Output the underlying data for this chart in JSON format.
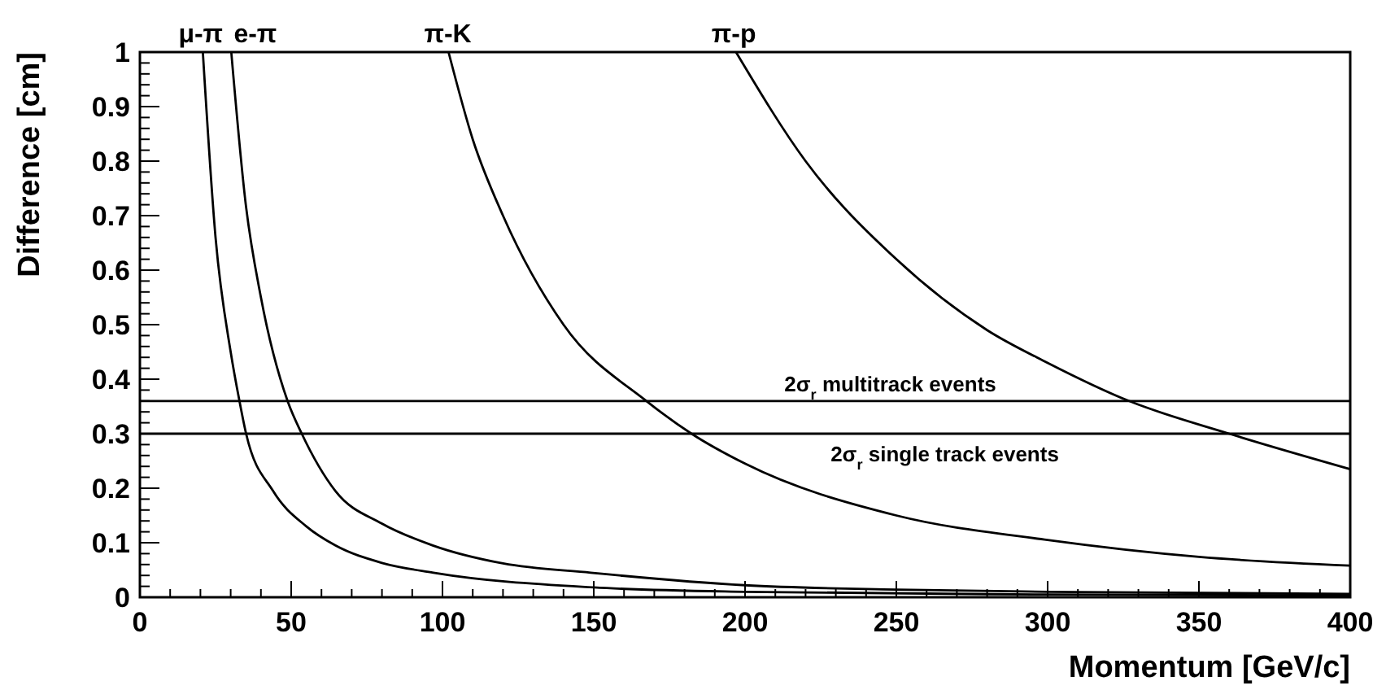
{
  "chart_data": {
    "type": "line",
    "xlabel": "Momentum [GeV/c]",
    "ylabel": "Difference [cm]",
    "xlim": [
      0,
      400
    ],
    "xticks": [
      0,
      50,
      100,
      150,
      200,
      250,
      300,
      350,
      400
    ],
    "ylim": [
      0,
      1
    ],
    "yticks": [
      0,
      0.1,
      0.2,
      0.3,
      0.4,
      0.5,
      0.6,
      0.7,
      0.8,
      0.9,
      1
    ],
    "grid": false,
    "marker": "none",
    "line_style": "solid",
    "series": [
      {
        "name": "μ-π",
        "color": "#000000",
        "x": [
          20.8,
          25,
          30,
          32.9,
          35.1,
          44,
          55,
          64.6,
          80,
          97,
          150,
          200,
          300,
          400
        ],
        "values": [
          1,
          0.66,
          0.45,
          0.36,
          0.3,
          0.195,
          0.13,
          0.095,
          0.063,
          0.045,
          0.018,
          0.01,
          0.005,
          0.003
        ]
      },
      {
        "name": "e-π",
        "color": "#000000",
        "x": [
          30.2,
          35,
          40,
          48.8,
          53.5,
          64.6,
          80,
          96.8,
          120,
          149,
          200,
          250,
          300,
          400
        ],
        "values": [
          1,
          0.72,
          0.55,
          0.36,
          0.3,
          0.195,
          0.135,
          0.095,
          0.062,
          0.045,
          0.022,
          0.014,
          0.01,
          0.006
        ]
      },
      {
        "name": "π-K",
        "color": "#000000",
        "x": [
          102,
          110,
          120,
          140,
          167.4,
          182.3,
          200,
          250,
          300,
          350,
          400
        ],
        "values": [
          1,
          0.84,
          0.7,
          0.5,
          0.36,
          0.3,
          0.245,
          0.15,
          0.105,
          0.074,
          0.058
        ]
      },
      {
        "name": "π-p",
        "color": "#000000",
        "x": [
          197,
          220,
          250,
          280,
          300,
          326.9,
          360,
          400
        ],
        "values": [
          1,
          0.8,
          0.62,
          0.49,
          0.43,
          0.36,
          0.3,
          0.235
        ]
      }
    ],
    "ref_lines": [
      {
        "axis": "y",
        "value": 0.36,
        "label": "2σ$_{r}$ multitrack events",
        "color": "#000000"
      },
      {
        "axis": "y",
        "value": 0.3,
        "label": "2σ$_{r}$ single track events",
        "color": "#000000"
      }
    ]
  }
}
